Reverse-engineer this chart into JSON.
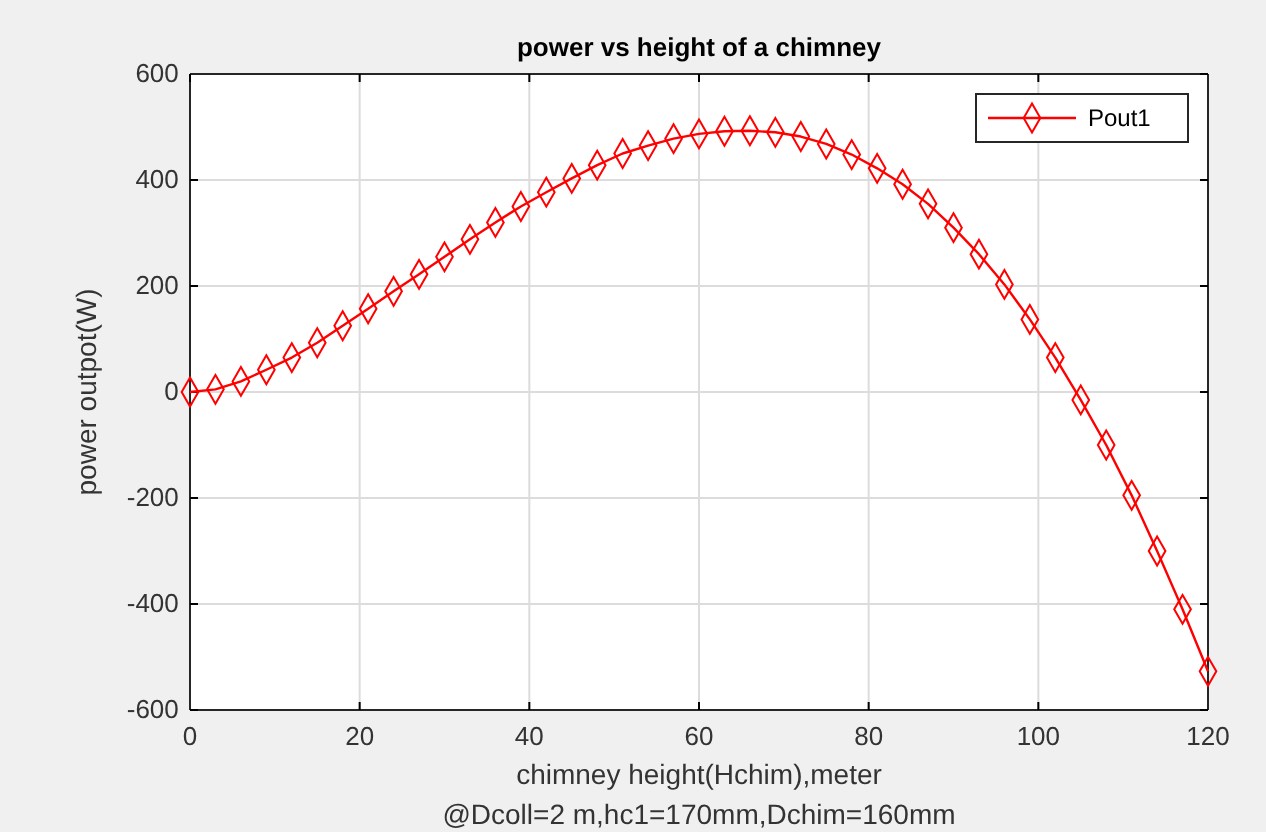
{
  "chart_data": {
    "type": "line",
    "title": "power vs height of a chimney",
    "xlabel": "chimney height(Hchim),meter",
    "ylabel": "power outpot(W)",
    "annotations": [
      "@Dcoll=2 m,hc1=170mm,Dchim=160mm"
    ],
    "x": [
      0,
      3,
      6,
      9,
      12,
      15,
      18,
      21,
      24,
      27,
      30,
      33,
      36,
      39,
      42,
      45,
      48,
      51,
      54,
      57,
      60,
      63,
      66,
      69,
      72,
      75,
      78,
      81,
      84,
      87,
      90,
      93,
      96,
      99,
      102,
      105,
      108,
      111,
      114,
      117,
      120
    ],
    "series": [
      {
        "name": "Pout1",
        "color": "#ff0000",
        "values": [
          0,
          5,
          20,
          42,
          65,
          93,
          125,
          157,
          190,
          222,
          255,
          288,
          320,
          350,
          377,
          403,
          428,
          450,
          465,
          478,
          487,
          492,
          493,
          490,
          482,
          468,
          448,
          422,
          392,
          355,
          310,
          260,
          203,
          137,
          65,
          -15,
          -100,
          -195,
          -300,
          -410,
          -527
        ]
      }
    ],
    "xlim": [
      0,
      120
    ],
    "xticks": [
      0,
      20,
      40,
      60,
      80,
      100,
      120
    ],
    "ylim": [
      -600,
      600
    ],
    "yticks": [
      -600,
      -400,
      -200,
      0,
      200,
      400,
      600
    ],
    "grid": true,
    "legend": "top right",
    "marker": "diamond",
    "line_style": "solid"
  }
}
